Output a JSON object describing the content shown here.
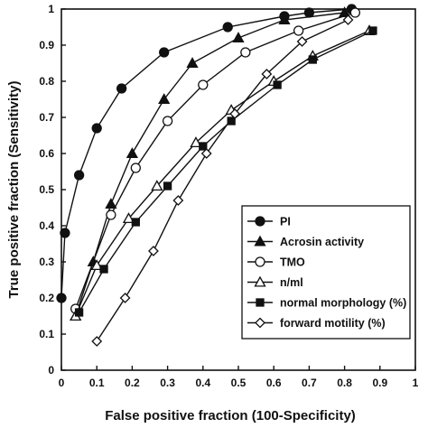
{
  "chart_data": {
    "type": "line",
    "xlabel": "False positive fraction (100-Specificity)",
    "ylabel": "True positive fraction (Sensitivity)",
    "xlim": [
      0,
      1
    ],
    "ylim": [
      0,
      1
    ],
    "xticks": [
      "0",
      "0.1",
      "0.2",
      "0.3",
      "0.4",
      "0.5",
      "0.6",
      "0.7",
      "0.8",
      "0.9",
      "1"
    ],
    "yticks": [
      "0",
      "0.1",
      "0.2",
      "0.3",
      "0.4",
      "0.5",
      "0.6",
      "0.7",
      "0.8",
      "0.9",
      "1"
    ],
    "grid": false,
    "legend_position": "bottom-right",
    "series": [
      {
        "name": "PI",
        "marker": "filled-circle",
        "x": [
          0,
          0.01,
          0.05,
          0.1,
          0.17,
          0.29,
          0.47,
          0.63,
          0.7,
          0.82
        ],
        "y": [
          0.2,
          0.38,
          0.54,
          0.67,
          0.78,
          0.88,
          0.95,
          0.98,
          0.99,
          1.0
        ]
      },
      {
        "name": "Acrosin activity",
        "marker": "filled-triangle",
        "x": [
          0.04,
          0.09,
          0.14,
          0.2,
          0.29,
          0.37,
          0.5,
          0.63,
          0.8
        ],
        "y": [
          0.15,
          0.3,
          0.46,
          0.6,
          0.75,
          0.85,
          0.92,
          0.97,
          0.99
        ]
      },
      {
        "name": "TMO",
        "marker": "open-circle",
        "x": [
          0.04,
          0.14,
          0.21,
          0.3,
          0.4,
          0.52,
          0.67,
          0.83
        ],
        "y": [
          0.17,
          0.43,
          0.56,
          0.69,
          0.79,
          0.88,
          0.94,
          0.99
        ]
      },
      {
        "name": "n/ml",
        "marker": "open-triangle",
        "x": [
          0.04,
          0.1,
          0.19,
          0.27,
          0.38,
          0.48,
          0.6,
          0.71,
          0.87
        ],
        "y": [
          0.15,
          0.29,
          0.42,
          0.51,
          0.63,
          0.72,
          0.8,
          0.87,
          0.94
        ]
      },
      {
        "name": "normal morphology (%)",
        "marker": "filled-square",
        "x": [
          0.05,
          0.12,
          0.21,
          0.3,
          0.4,
          0.48,
          0.61,
          0.71,
          0.88
        ],
        "y": [
          0.16,
          0.28,
          0.41,
          0.51,
          0.62,
          0.69,
          0.79,
          0.86,
          0.94
        ]
      },
      {
        "name": "forward motility (%)",
        "marker": "open-diamond",
        "x": [
          0.1,
          0.18,
          0.26,
          0.33,
          0.41,
          0.49,
          0.58,
          0.68,
          0.81
        ],
        "y": [
          0.08,
          0.2,
          0.33,
          0.47,
          0.6,
          0.71,
          0.82,
          0.91,
          0.97
        ]
      }
    ]
  }
}
